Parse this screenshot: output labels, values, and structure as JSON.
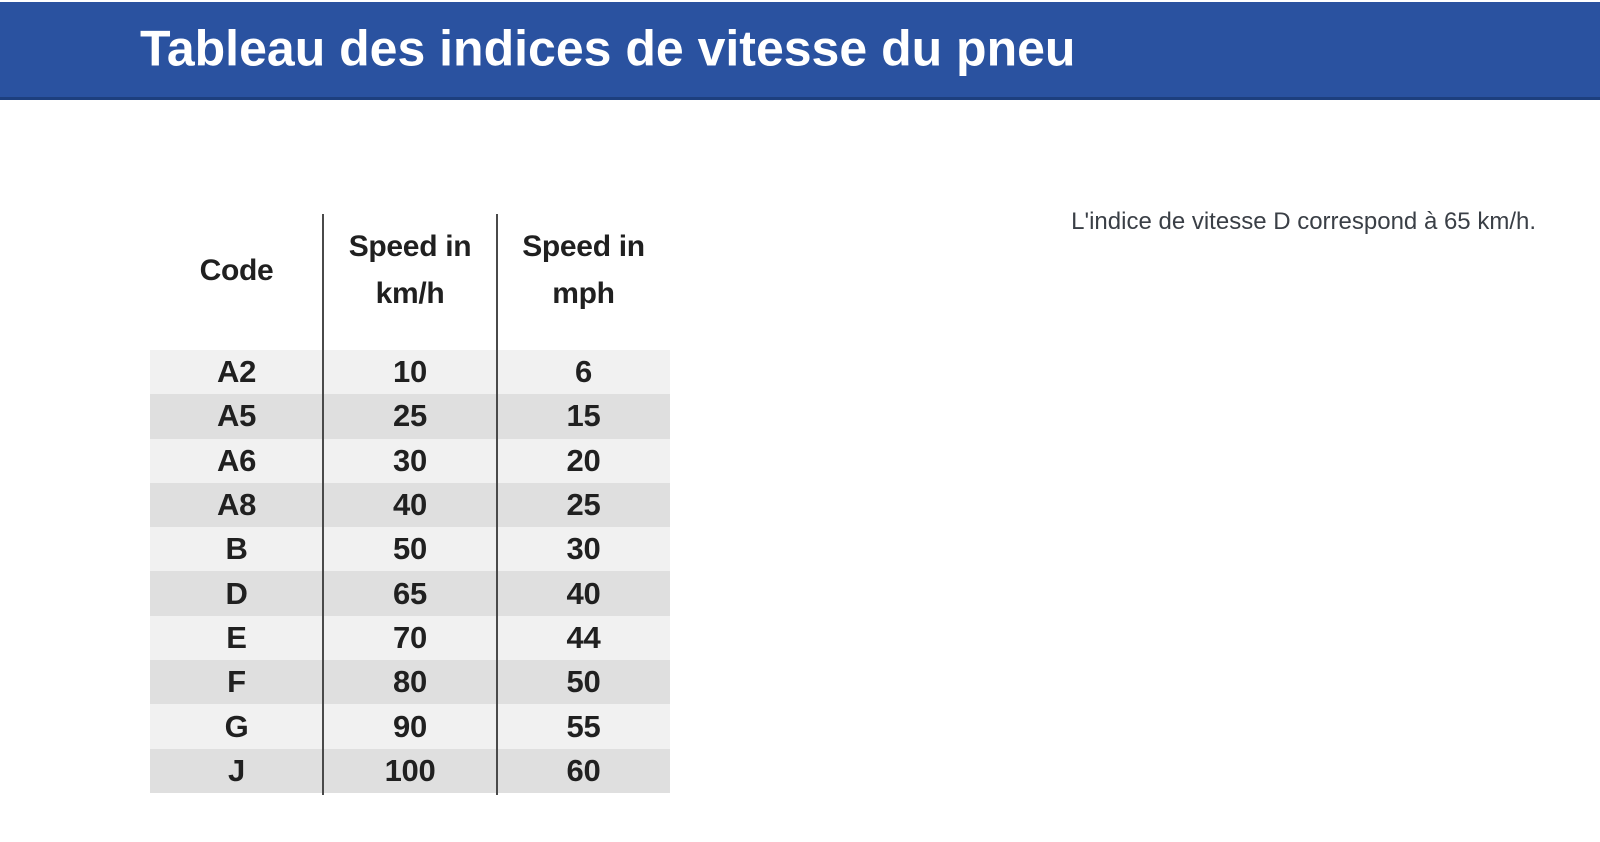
{
  "header": {
    "title": "Tableau des indices de vitesse du pneu"
  },
  "table": {
    "headers": [
      {
        "lines": [
          "Code"
        ]
      },
      {
        "lines": [
          "Speed in",
          "km/h"
        ]
      },
      {
        "lines": [
          "Speed in",
          "mph"
        ]
      }
    ],
    "rows": [
      [
        "A2",
        "10",
        "6"
      ],
      [
        "A5",
        "25",
        "15"
      ],
      [
        "A6",
        "30",
        "20"
      ],
      [
        "A8",
        "40",
        "25"
      ],
      [
        "B",
        "50",
        "30"
      ],
      [
        "D",
        "65",
        "40"
      ],
      [
        "E",
        "70",
        "44"
      ],
      [
        "F",
        "80",
        "50"
      ],
      [
        "G",
        "90",
        "55"
      ],
      [
        "J",
        "100",
        "60"
      ]
    ]
  },
  "note": {
    "text": "L'indice de vitesse D correspond à 65 km/h."
  },
  "colors": {
    "bar": "#2a52a0",
    "bar_border": "#1d3f7e",
    "title_text": "#ffffff",
    "row_light": "#f1f1f1",
    "row_dark": "#dfdfdf",
    "line": "#4a4a4a",
    "table_text": "#202020",
    "note_text": "#3a3f46"
  }
}
